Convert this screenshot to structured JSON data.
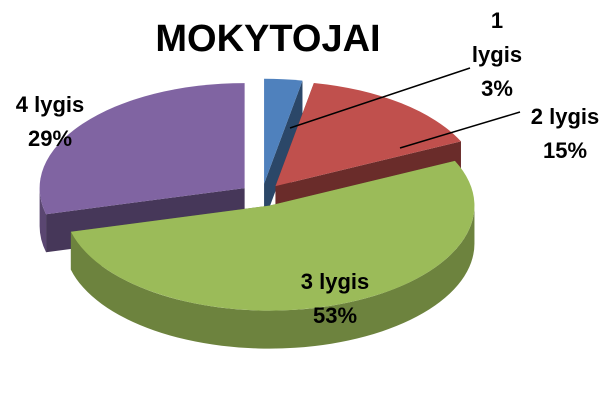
{
  "chart_data": {
    "type": "pie",
    "title": "MOKYTOJAI",
    "categories": [
      "1 lygis",
      "2 lygis",
      "3 lygis",
      "4 lygis"
    ],
    "values": [
      3,
      15,
      53,
      29
    ],
    "value_labels": [
      "3%",
      "15%",
      "53%",
      "29%"
    ],
    "colors": [
      "#4f81bd",
      "#c0504d",
      "#9bbb59",
      "#8064a2"
    ]
  }
}
